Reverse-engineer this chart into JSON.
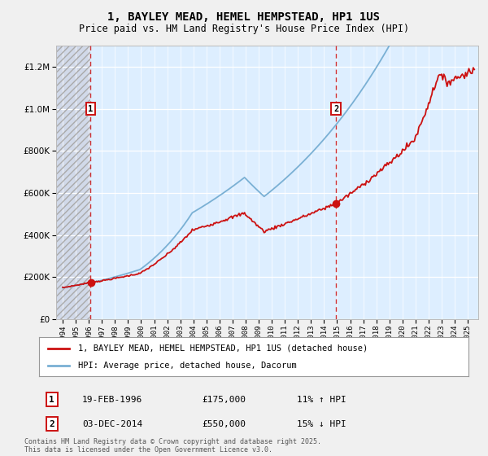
{
  "title": "1, BAYLEY MEAD, HEMEL HEMPSTEAD, HP1 1US",
  "subtitle": "Price paid vs. HM Land Registry's House Price Index (HPI)",
  "ytick_values": [
    0,
    200000,
    400000,
    600000,
    800000,
    1000000,
    1200000
  ],
  "ylim": [
    0,
    1300000
  ],
  "xlim_start": 1993.5,
  "xlim_end": 2025.8,
  "bg_color": "#ddeeff",
  "grid_color": "#ffffff",
  "red_line_color": "#cc1111",
  "blue_line_color": "#7ab0d4",
  "transaction1": {
    "date": "19-FEB-1996",
    "price": 175000,
    "hpi_pct": "11% ↑ HPI",
    "year": 1996.13
  },
  "transaction2": {
    "date": "03-DEC-2014",
    "price": 550000,
    "hpi_pct": "15% ↓ HPI",
    "year": 2014.92
  },
  "legend_line1": "1, BAYLEY MEAD, HEMEL HEMPSTEAD, HP1 1US (detached house)",
  "legend_line2": "HPI: Average price, detached house, Dacorum",
  "footnote": "Contains HM Land Registry data © Crown copyright and database right 2025.\nThis data is licensed under the Open Government Licence v3.0.",
  "marker_box_color": "#cc1111",
  "fig_width": 6.0,
  "fig_height": 5.6,
  "dpi": 100
}
